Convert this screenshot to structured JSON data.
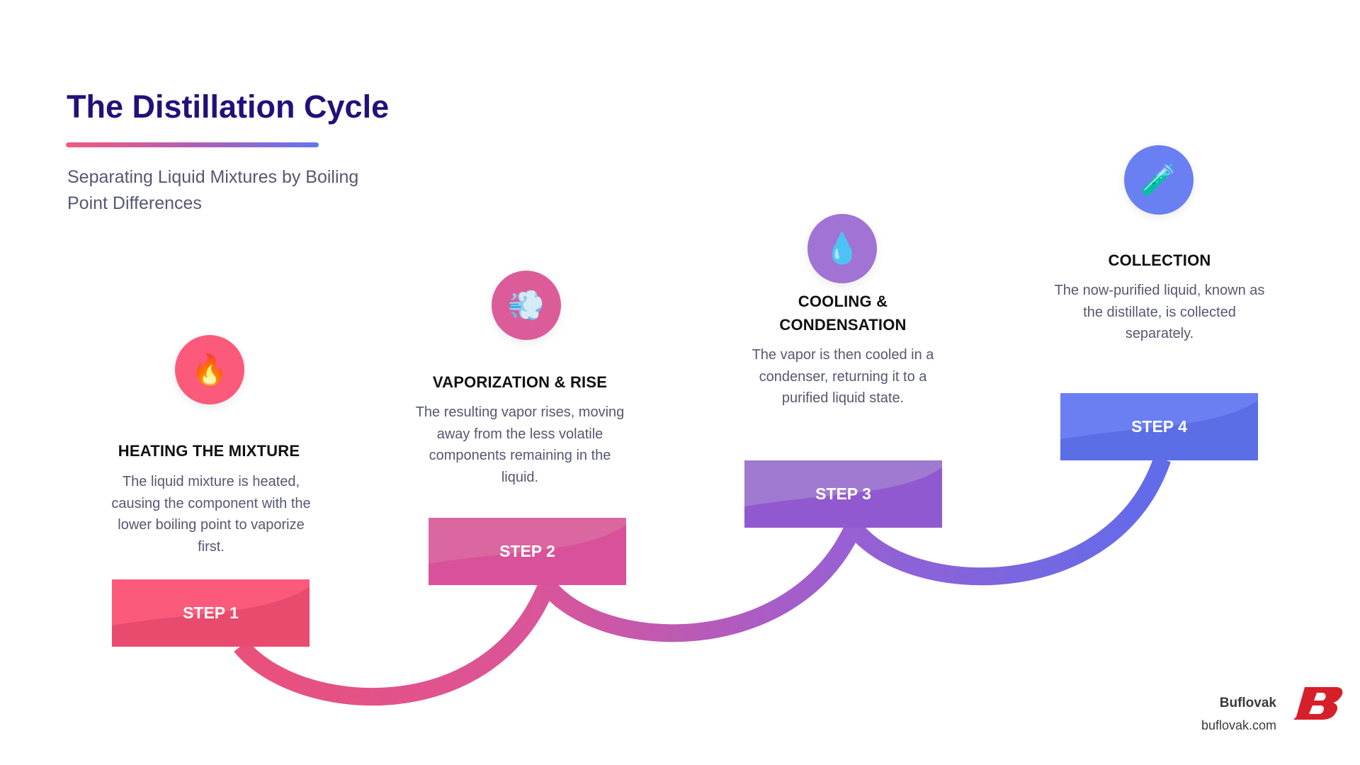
{
  "header": {
    "title": "The Distillation Cycle",
    "subtitle": "Separating Liquid Mixtures by Boiling Point Differences"
  },
  "steps": [
    {
      "label": "STEP 1",
      "heading": "HEATING THE MIXTURE",
      "description": "The liquid mixture is heated, causing the component with the lower boiling point to vaporize first.",
      "icon": "fire-icon",
      "glyph": "🔥",
      "color": "#f0506e"
    },
    {
      "label": "STEP 2",
      "heading": "VAPORIZATION & RISE",
      "description": "The resulting vapor rises, moving away from the less volatile components remaining in the liquid.",
      "icon": "vapor-cloud-icon",
      "glyph": "💨",
      "color": "#d9559a"
    },
    {
      "label": "STEP 3",
      "heading": "COOLING & CONDENSATION",
      "description": "The vapor is then cooled in a condenser, returning it to a purified liquid state.",
      "icon": "water-droplet-icon",
      "glyph": "💧",
      "color": "#9b64d2"
    },
    {
      "label": "STEP 4",
      "heading": "COLLECTION",
      "description": "The now-purified liquid, known as the distillate, is collected separately.",
      "icon": "test-tube-icon",
      "glyph": "🧪",
      "color": "#6272ec"
    }
  ],
  "brand": {
    "name": "Buflovak",
    "url": "buflovak.com",
    "logo_letter": "B",
    "logo_color": "#d71f2a"
  }
}
